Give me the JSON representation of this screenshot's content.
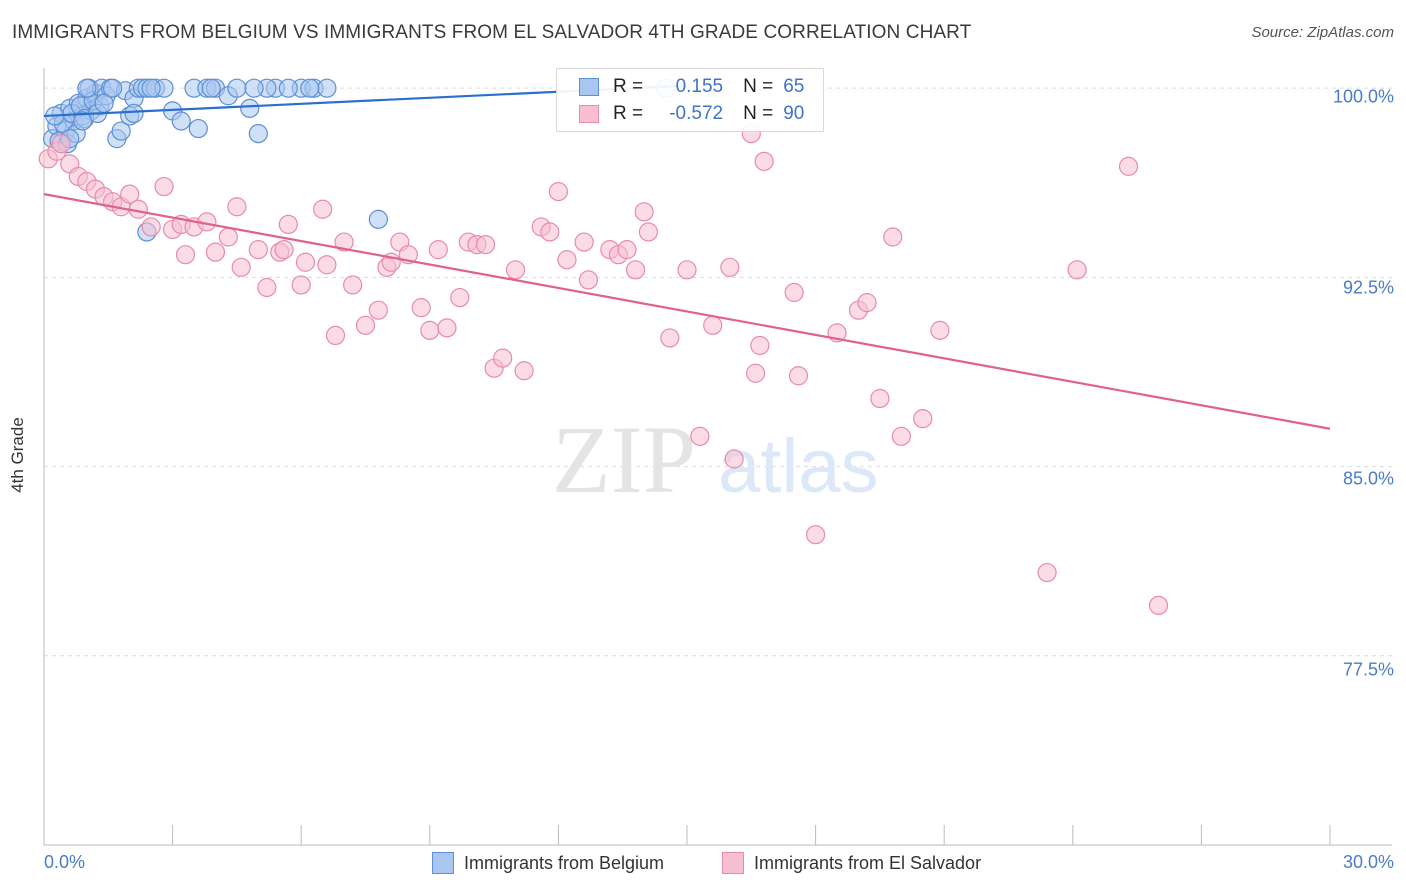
{
  "chart_data": {
    "type": "scatter",
    "title": "IMMIGRANTS FROM BELGIUM VS IMMIGRANTS FROM EL SALVADOR 4TH GRADE CORRELATION CHART",
    "source": "Source: ZipAtlas.com",
    "xlabel": "",
    "ylabel": "4th Grade",
    "xlim": [
      0,
      30
    ],
    "ylim": [
      70,
      100.8
    ],
    "x_tick_labels": [
      "0.0%",
      "30.0%"
    ],
    "y_ticks": [
      100,
      92.5,
      85,
      77.5
    ],
    "y_tick_labels": [
      "100.0%",
      "92.5%",
      "85.0%",
      "77.5%"
    ],
    "watermark": {
      "zip": "ZIP",
      "atlas": "atlas"
    },
    "legend": {
      "r_label": "R =",
      "n_label": "N =",
      "entries": [
        {
          "name": "Immigrants from Belgium",
          "r": "0.155",
          "n": "65"
        },
        {
          "name": "Immigrants from El Salvador",
          "r": "-0.572",
          "n": "90"
        }
      ]
    },
    "colors": {
      "belgium_fill": "#a9c6f0",
      "belgium_stroke": "#5b8fd6",
      "belgium_line": "#2a6fd0",
      "salvador_fill": "#f7bfd0",
      "salvador_stroke": "#e98aaa",
      "salvador_line": "#e0608e",
      "tick_text": "#4a7cc9"
    },
    "series": [
      {
        "name": "Immigrants from Belgium",
        "trend": {
          "x": [
            0,
            15.0
          ],
          "y": [
            98.9,
            100.1
          ]
        },
        "points": [
          [
            0.2,
            98.0
          ],
          [
            0.3,
            98.5
          ],
          [
            0.4,
            99.0
          ],
          [
            0.5,
            98.3
          ],
          [
            0.6,
            99.2
          ],
          [
            0.7,
            98.7
          ],
          [
            0.8,
            99.4
          ],
          [
            0.9,
            98.9
          ],
          [
            1.0,
            99.6
          ],
          [
            1.1,
            99.1
          ],
          [
            1.2,
            99.8
          ],
          [
            1.3,
            99.3
          ],
          [
            0.35,
            97.9
          ],
          [
            0.45,
            98.6
          ],
          [
            0.55,
            97.8
          ],
          [
            0.65,
            99.0
          ],
          [
            0.75,
            98.2
          ],
          [
            0.85,
            99.3
          ],
          [
            0.95,
            98.8
          ],
          [
            1.05,
            100.0
          ],
          [
            1.15,
            99.5
          ],
          [
            1.25,
            99.0
          ],
          [
            1.35,
            100.0
          ],
          [
            1.45,
            99.7
          ],
          [
            1.55,
            100.0
          ],
          [
            1.7,
            98.0
          ],
          [
            1.8,
            98.3
          ],
          [
            1.9,
            99.9
          ],
          [
            2.0,
            98.9
          ],
          [
            2.1,
            99.6
          ],
          [
            2.2,
            100.0
          ],
          [
            2.3,
            100.0
          ],
          [
            2.4,
            100.0
          ],
          [
            2.6,
            100.0
          ],
          [
            2.8,
            100.0
          ],
          [
            3.0,
            99.1
          ],
          [
            3.2,
            98.7
          ],
          [
            3.5,
            100.0
          ],
          [
            3.8,
            100.0
          ],
          [
            4.0,
            100.0
          ],
          [
            4.3,
            99.7
          ],
          [
            4.5,
            100.0
          ],
          [
            4.8,
            99.2
          ],
          [
            5.0,
            98.2
          ],
          [
            5.4,
            100.0
          ],
          [
            6.0,
            100.0
          ],
          [
            6.3,
            100.0
          ],
          [
            6.6,
            100.0
          ],
          [
            6.2,
            100.0
          ],
          [
            5.7,
            100.0
          ],
          [
            5.2,
            100.0
          ],
          [
            4.9,
            100.0
          ],
          [
            3.9,
            100.0
          ],
          [
            3.6,
            98.4
          ],
          [
            2.5,
            100.0
          ],
          [
            1.6,
            100.0
          ],
          [
            1.4,
            99.4
          ],
          [
            0.6,
            98.0
          ],
          [
            0.25,
            98.9
          ],
          [
            1.0,
            100.0
          ],
          [
            2.1,
            99.0
          ],
          [
            2.4,
            94.3
          ],
          [
            7.8,
            94.8
          ],
          [
            14.5,
            100.0
          ],
          [
            0.9,
            98.7
          ]
        ]
      },
      {
        "name": "Immigrants from El Salvador",
        "trend": {
          "x": [
            0,
            30.0
          ],
          "y": [
            95.8,
            86.5
          ]
        },
        "points": [
          [
            0.1,
            97.2
          ],
          [
            0.3,
            97.5
          ],
          [
            0.4,
            97.8
          ],
          [
            0.6,
            97.0
          ],
          [
            0.8,
            96.5
          ],
          [
            1.0,
            96.3
          ],
          [
            1.2,
            96.0
          ],
          [
            1.4,
            95.7
          ],
          [
            1.6,
            95.5
          ],
          [
            1.8,
            95.3
          ],
          [
            2.0,
            95.8
          ],
          [
            2.2,
            95.2
          ],
          [
            2.5,
            94.5
          ],
          [
            2.8,
            96.1
          ],
          [
            3.0,
            94.4
          ],
          [
            3.2,
            94.6
          ],
          [
            3.3,
            93.4
          ],
          [
            3.5,
            94.5
          ],
          [
            3.8,
            94.7
          ],
          [
            4.0,
            93.5
          ],
          [
            4.3,
            94.1
          ],
          [
            4.5,
            95.3
          ],
          [
            4.6,
            92.9
          ],
          [
            5.0,
            93.6
          ],
          [
            5.2,
            92.1
          ],
          [
            5.5,
            93.5
          ],
          [
            5.6,
            93.6
          ],
          [
            5.7,
            94.6
          ],
          [
            6.0,
            92.2
          ],
          [
            6.1,
            93.1
          ],
          [
            6.5,
            95.2
          ],
          [
            6.6,
            93.0
          ],
          [
            6.8,
            90.2
          ],
          [
            7.0,
            93.9
          ],
          [
            7.2,
            92.2
          ],
          [
            7.5,
            90.6
          ],
          [
            7.8,
            91.2
          ],
          [
            8.0,
            92.9
          ],
          [
            8.1,
            93.1
          ],
          [
            8.3,
            93.9
          ],
          [
            8.5,
            93.4
          ],
          [
            8.8,
            91.3
          ],
          [
            9.0,
            90.4
          ],
          [
            9.2,
            93.6
          ],
          [
            9.4,
            90.5
          ],
          [
            9.7,
            91.7
          ],
          [
            9.9,
            93.9
          ],
          [
            10.1,
            93.8
          ],
          [
            10.3,
            93.8
          ],
          [
            10.5,
            88.9
          ],
          [
            10.7,
            89.3
          ],
          [
            11.0,
            92.8
          ],
          [
            11.2,
            88.8
          ],
          [
            11.6,
            94.5
          ],
          [
            11.8,
            94.3
          ],
          [
            12.0,
            95.9
          ],
          [
            12.2,
            93.2
          ],
          [
            12.6,
            93.9
          ],
          [
            12.7,
            92.4
          ],
          [
            13.2,
            93.6
          ],
          [
            13.4,
            93.4
          ],
          [
            13.6,
            93.6
          ],
          [
            13.8,
            92.8
          ],
          [
            14.0,
            95.1
          ],
          [
            14.1,
            94.3
          ],
          [
            14.6,
            90.1
          ],
          [
            15.0,
            92.8
          ],
          [
            15.3,
            86.2
          ],
          [
            15.6,
            90.6
          ],
          [
            16.0,
            92.9
          ],
          [
            16.1,
            85.3
          ],
          [
            16.5,
            98.2
          ],
          [
            16.7,
            89.8
          ],
          [
            16.6,
            88.7
          ],
          [
            16.8,
            97.1
          ],
          [
            17.5,
            91.9
          ],
          [
            17.6,
            88.6
          ],
          [
            18.0,
            82.3
          ],
          [
            18.5,
            90.3
          ],
          [
            19.0,
            91.2
          ],
          [
            19.2,
            91.5
          ],
          [
            19.5,
            87.7
          ],
          [
            19.8,
            94.1
          ],
          [
            20.0,
            86.2
          ],
          [
            20.5,
            86.9
          ],
          [
            20.9,
            90.4
          ],
          [
            23.4,
            80.8
          ],
          [
            24.1,
            92.8
          ],
          [
            25.3,
            96.9
          ],
          [
            26.0,
            79.5
          ]
        ]
      }
    ]
  }
}
